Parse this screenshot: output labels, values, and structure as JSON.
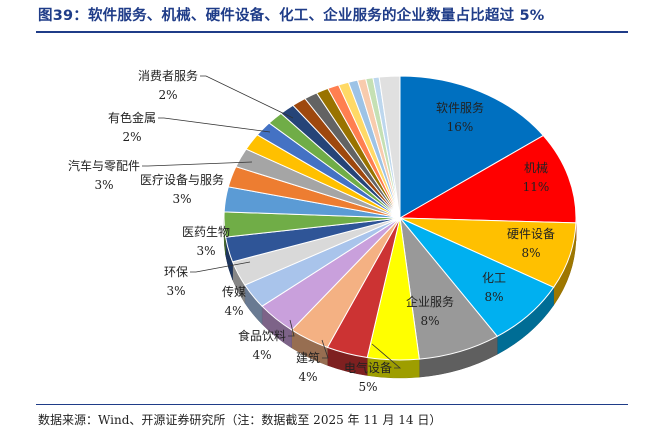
{
  "title": "图39：软件服务、机械、硬件设备、化工、企业服务的企业数量占比超过 5%",
  "source": "数据来源：Wind、开源证券研究所（注：数据截至 2025 年 11 月 14 日）",
  "chart_data": {
    "type": "pie",
    "title": "图39：软件服务、机械、硬件设备、化工、企业服务的企业数量占比超过 5%",
    "slices": [
      {
        "name": "软件服务",
        "label": "16%",
        "value": 16,
        "color": "#0070c0"
      },
      {
        "name": "机械",
        "label": "11%",
        "value": 11,
        "color": "#ff0000"
      },
      {
        "name": "硬件设备",
        "label": "8%",
        "value": 8,
        "color": "#ffc000"
      },
      {
        "name": "化工",
        "label": "8%",
        "value": 8,
        "color": "#00b0f0"
      },
      {
        "name": "企业服务",
        "label": "8%",
        "value": 8,
        "color": "#999999"
      },
      {
        "name": "电气设备",
        "label": "5%",
        "value": 5,
        "color": "#ffff00"
      },
      {
        "name": "建筑",
        "label": "4%",
        "value": 4,
        "color": "#cc3333"
      },
      {
        "name": "食品饮料",
        "label": "4%",
        "value": 4,
        "color": "#f4b183"
      },
      {
        "name": "传媒",
        "label": "4%",
        "value": 4,
        "color": "#c9a0dc"
      },
      {
        "name": "环保",
        "label": "3%",
        "value": 3,
        "color": "#a9c4eb"
      },
      {
        "name": "医药生物",
        "label": "3%",
        "value": 3,
        "color": "#d9d9d9"
      },
      {
        "name": "",
        "label": "",
        "value": 3,
        "color": "#2f5597"
      },
      {
        "name": "医疗设备与服务",
        "label": "3%",
        "value": 3,
        "color": "#70ad47"
      },
      {
        "name": "汽车与零配件",
        "label": "3%",
        "value": 3,
        "color": "#5b9bd5"
      },
      {
        "name": "",
        "label": "",
        "value": 2.5,
        "color": "#ed7d31"
      },
      {
        "name": "",
        "label": "",
        "value": 2.3,
        "color": "#a5a5a5"
      },
      {
        "name": "有色金属",
        "label": "2%",
        "value": 2,
        "color": "#ffc000"
      },
      {
        "name": "",
        "label": "",
        "value": 1.8,
        "color": "#4472c4"
      },
      {
        "name": "",
        "label": "",
        "value": 1.6,
        "color": "#70ad47"
      },
      {
        "name": "",
        "label": "",
        "value": 1.5,
        "color": "#264478"
      },
      {
        "name": "",
        "label": "",
        "value": 1.4,
        "color": "#9e480e"
      },
      {
        "name": "",
        "label": "",
        "value": 1.3,
        "color": "#636363"
      },
      {
        "name": "",
        "label": "",
        "value": 1.2,
        "color": "#997300"
      },
      {
        "name": "",
        "label": "",
        "value": 1.1,
        "color": "#ff7f50"
      },
      {
        "name": "",
        "label": "",
        "value": 1.0,
        "color": "#ffd966"
      },
      {
        "name": "",
        "label": "",
        "value": 0.9,
        "color": "#9dc3e6"
      },
      {
        "name": "",
        "label": "",
        "value": 0.8,
        "color": "#f8cbad"
      },
      {
        "name": "",
        "label": "",
        "value": 0.7,
        "color": "#c5e0b4"
      },
      {
        "name": "",
        "label": "",
        "value": 0.6,
        "color": "#bdd7ee"
      },
      {
        "name": "消费者服务",
        "label": "2%",
        "value": 2,
        "color": "#e0e0e0"
      }
    ]
  }
}
